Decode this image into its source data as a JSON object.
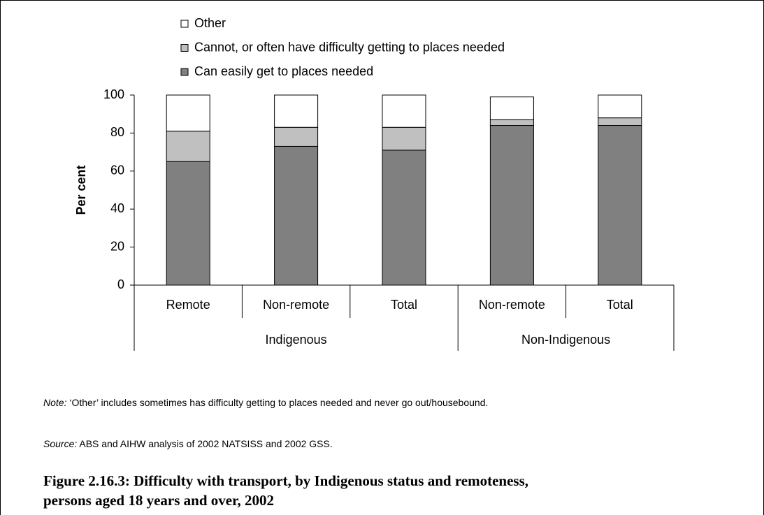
{
  "chart_data": {
    "type": "stacked-bar",
    "groups": [
      {
        "label": "Indigenous",
        "categories": [
          "Remote",
          "Non-remote",
          "Total"
        ]
      },
      {
        "label": "Non-Indigenous",
        "categories": [
          "Non-remote",
          "Total"
        ]
      }
    ],
    "series": [
      {
        "name": "Can easily get to places needed",
        "color": "#808080",
        "values": [
          65,
          73,
          71,
          84,
          84
        ]
      },
      {
        "name": "Cannot, or often have difficulty getting to places needed",
        "color": "#c0c0c0",
        "values": [
          16,
          10,
          12,
          3,
          4
        ]
      },
      {
        "name": "Other",
        "color": "#ffffff",
        "values": [
          19,
          17,
          17,
          12,
          12
        ]
      }
    ],
    "y_label": "Per cent",
    "ylim": [
      0,
      100
    ],
    "yticks": [
      0,
      20,
      40,
      60,
      80,
      100
    ],
    "note": {
      "label": "Note:",
      "text": " ‘Other’ includes sometimes has difficulty getting to places needed and never go out/housebound."
    },
    "source": {
      "label": "Source:",
      "text": " ABS and AIHW analysis of 2002 NATSISS and 2002 GSS."
    },
    "caption": [
      "Figure 2.16.3: Difficulty with transport, by Indigenous status and remoteness,",
      "persons aged 18 years and over, 2002"
    ]
  }
}
